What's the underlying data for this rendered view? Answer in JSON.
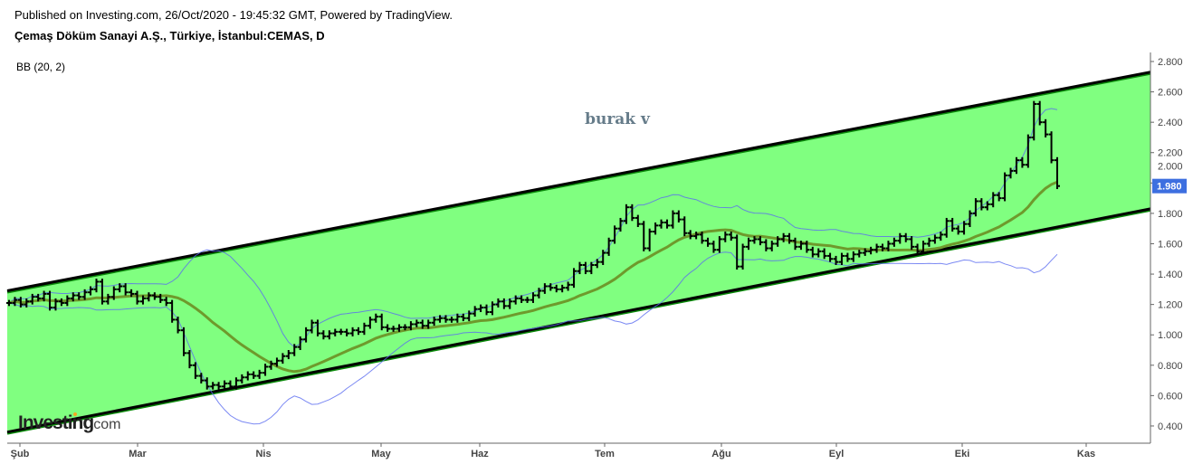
{
  "header": {
    "published": "Published on Investing.com, 26/Oct/2020 - 19:45:32 GMT, Powered by TradingView.",
    "title": "Çemaş Döküm Sanayi A.Ş., Türkiye, İstanbul:CEMAS, D",
    "indicator": "BB (20, 2)"
  },
  "watermark": "burak v",
  "logo": {
    "brand": "Investing",
    "suffix": ".com"
  },
  "chart_data": {
    "type": "ohlc",
    "symbol": "CEMAS",
    "interval": "D",
    "ylim": [
      0.35,
      2.85
    ],
    "y_ticks": [
      "0.400",
      "0.600",
      "0.800",
      "1.000",
      "1.200",
      "1.400",
      "1.600",
      "1.800",
      "2.000",
      "2.200",
      "2.400",
      "2.600",
      "2.800"
    ],
    "x_ticks": [
      "Şub",
      "Mar",
      "Nis",
      "May",
      "Haz",
      "Tem",
      "Ağu",
      "Eyl",
      "Eki",
      "Kas"
    ],
    "last_price": "1.980",
    "last_price_color": "#3d6fe0",
    "closes": [
      1.21,
      1.23,
      1.2,
      1.22,
      1.25,
      1.24,
      1.27,
      1.18,
      1.22,
      1.21,
      1.24,
      1.26,
      1.25,
      1.28,
      1.3,
      1.35,
      1.22,
      1.25,
      1.3,
      1.32,
      1.28,
      1.27,
      1.22,
      1.24,
      1.26,
      1.25,
      1.23,
      1.21,
      1.1,
      1.03,
      0.88,
      0.8,
      0.73,
      0.7,
      0.66,
      0.67,
      0.66,
      0.68,
      0.66,
      0.7,
      0.72,
      0.74,
      0.73,
      0.75,
      0.79,
      0.81,
      0.83,
      0.86,
      0.88,
      0.92,
      0.97,
      1.03,
      1.08,
      1.01,
      0.99,
      1.01,
      1.02,
      1.02,
      1.01,
      1.03,
      1.02,
      1.06,
      1.1,
      1.12,
      1.05,
      1.04,
      1.04,
      1.05,
      1.05,
      1.07,
      1.08,
      1.06,
      1.08,
      1.1,
      1.11,
      1.1,
      1.1,
      1.12,
      1.11,
      1.14,
      1.17,
      1.18,
      1.15,
      1.2,
      1.22,
      1.19,
      1.22,
      1.24,
      1.23,
      1.23,
      1.26,
      1.29,
      1.32,
      1.31,
      1.3,
      1.31,
      1.33,
      1.42,
      1.46,
      1.42,
      1.46,
      1.48,
      1.54,
      1.62,
      1.7,
      1.75,
      1.84,
      1.77,
      1.73,
      1.57,
      1.68,
      1.72,
      1.74,
      1.72,
      1.8,
      1.76,
      1.67,
      1.65,
      1.66,
      1.62,
      1.6,
      1.56,
      1.63,
      1.66,
      1.64,
      1.45,
      1.58,
      1.62,
      1.63,
      1.61,
      1.57,
      1.6,
      1.63,
      1.65,
      1.62,
      1.58,
      1.6,
      1.56,
      1.53,
      1.55,
      1.52,
      1.5,
      1.48,
      1.52,
      1.5,
      1.53,
      1.54,
      1.55,
      1.56,
      1.58,
      1.57,
      1.6,
      1.62,
      1.65,
      1.63,
      1.58,
      1.55,
      1.6,
      1.62,
      1.64,
      1.66,
      1.75,
      1.7,
      1.68,
      1.73,
      1.8,
      1.88,
      1.84,
      1.86,
      1.92,
      1.9,
      2.05,
      2.08,
      2.15,
      2.12,
      2.3,
      2.52,
      2.4,
      2.32,
      2.15,
      1.98
    ],
    "bollinger": {
      "period": 20,
      "stddev": 2,
      "middle_color": "#6e9a2c",
      "band_color": "#5a6cf0"
    },
    "channel": {
      "upper": [
        1.29,
        2.73
      ],
      "lower": [
        0.36,
        1.83
      ],
      "fill": "#80ff80",
      "line_color": "#000000"
    },
    "grid": false
  }
}
